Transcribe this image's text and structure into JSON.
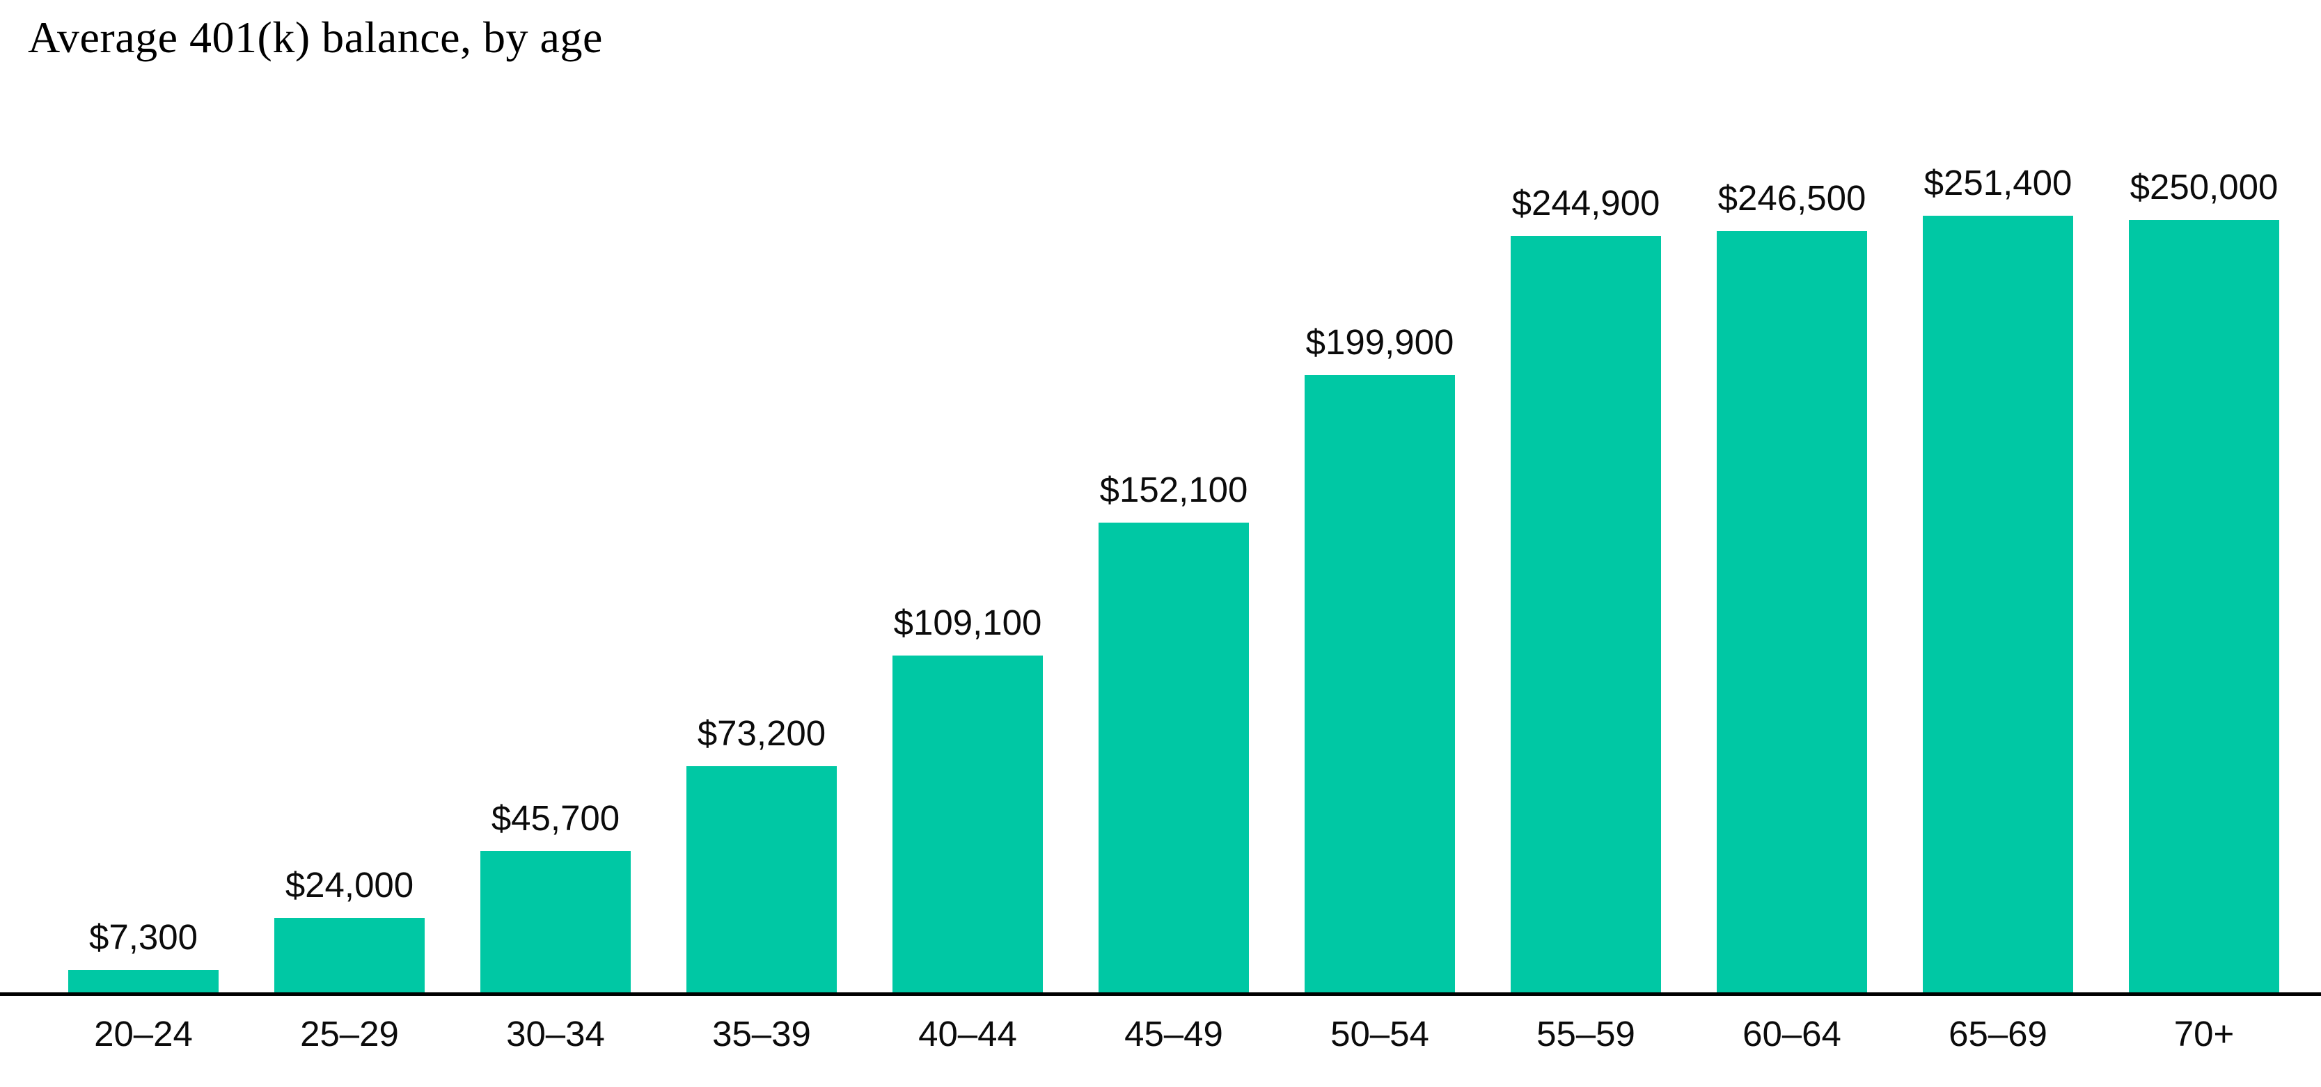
{
  "chart": {
    "title": "Average 401(k) balance, by age"
  },
  "chart_data": {
    "type": "bar",
    "title": "Average 401(k) balance, by age",
    "categories": [
      "20–24",
      "25–29",
      "30–34",
      "35–39",
      "40–44",
      "45–49",
      "50–54",
      "55–59",
      "60–64",
      "65–69",
      "70+"
    ],
    "values": [
      7300,
      24000,
      45700,
      73200,
      109100,
      152100,
      199900,
      244900,
      246500,
      251400,
      250000
    ],
    "value_labels": [
      "$7,300",
      "$24,000",
      "$45,700",
      "$73,200",
      "$109,100",
      "$152,100",
      "$199,900",
      "$244,900",
      "$246,500",
      "$251,400",
      "$250,000"
    ],
    "xlabel": "",
    "ylabel": "",
    "ylim": [
      0,
      251400
    ],
    "grid": false,
    "legend_position": "none",
    "data_labels": "above-bars",
    "bar_color": "#00c8a4",
    "axis_line_color": "#000000",
    "text_color": "#0b0b0b"
  }
}
